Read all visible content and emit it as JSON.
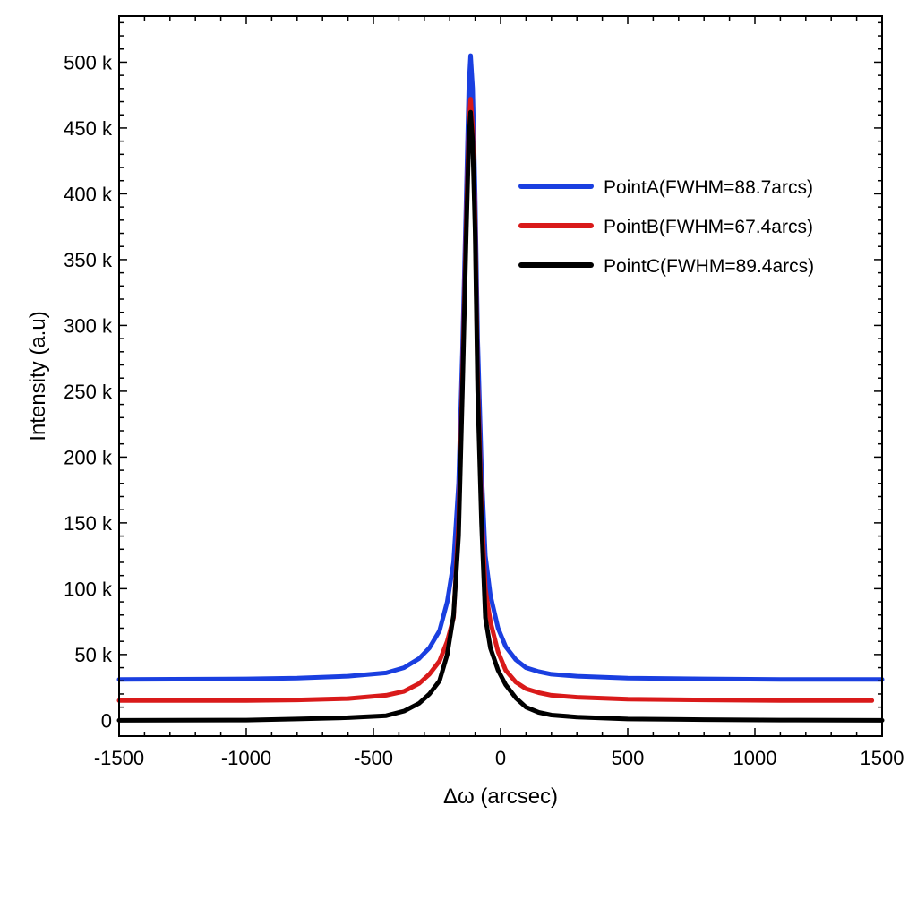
{
  "chart_data": {
    "type": "line",
    "title": "",
    "xlabel": "Δω (arcsec)",
    "ylabel": "Intensity (a.u)",
    "xlim": [
      -1500,
      1500
    ],
    "ylim": [
      -12000,
      535000
    ],
    "x_ticks": [
      -1500,
      -1000,
      -500,
      0,
      500,
      1000,
      1500
    ],
    "x_tick_labels": [
      "-1500",
      "-1000",
      "-500",
      "0",
      "500",
      "1000",
      "1500"
    ],
    "y_ticks": [
      0,
      50000,
      100000,
      150000,
      200000,
      250000,
      300000,
      350000,
      400000,
      450000,
      500000
    ],
    "y_tick_labels": [
      "0",
      "50 k",
      "100 k",
      "150 k",
      "200 k",
      "250 k",
      "300 k",
      "350 k",
      "400 k",
      "450 k",
      "500 k"
    ],
    "grid": false,
    "legend_position": "top-right",
    "series": [
      {
        "name": "PointA(FWHM=88.7arcs)",
        "color": "#1a3fe0",
        "x": [
          -1500,
          -1000,
          -800,
          -600,
          -450,
          -380,
          -320,
          -280,
          -240,
          -210,
          -185,
          -165,
          -150,
          -135,
          -125,
          -118,
          -110,
          -100,
          -90,
          -75,
          -60,
          -40,
          -10,
          20,
          60,
          100,
          150,
          200,
          300,
          500,
          800,
          1100,
          1500
        ],
        "y": [
          31000,
          31500,
          32000,
          33500,
          36000,
          40000,
          47000,
          55000,
          68000,
          90000,
          120000,
          180000,
          280000,
          400000,
          480000,
          505000,
          480000,
          400000,
          290000,
          190000,
          125000,
          95000,
          70000,
          56000,
          46000,
          40000,
          37000,
          35000,
          33500,
          32000,
          31500,
          31000,
          31000
        ]
      },
      {
        "name": "PointB(FWHM=67.4arcs)",
        "color": "#d91a1a",
        "x": [
          -1500,
          -1000,
          -800,
          -600,
          -450,
          -380,
          -320,
          -280,
          -240,
          -210,
          -185,
          -165,
          -150,
          -135,
          -125,
          -118,
          -110,
          -100,
          -90,
          -75,
          -60,
          -40,
          -10,
          20,
          60,
          100,
          150,
          200,
          300,
          500,
          800,
          1100,
          1460
        ],
        "y": [
          15000,
          15000,
          15500,
          16500,
          19000,
          22000,
          28000,
          35000,
          45000,
          60000,
          78000,
          150000,
          260000,
          380000,
          450000,
          472000,
          450000,
          380000,
          260000,
          160000,
          100000,
          75000,
          52000,
          38000,
          29000,
          24000,
          21000,
          19000,
          17500,
          16000,
          15500,
          15000,
          15000
        ]
      },
      {
        "name": "PointC(FWHM=89.4arcs)",
        "color": "#000000",
        "x": [
          -1500,
          -1000,
          -800,
          -600,
          -450,
          -380,
          -320,
          -280,
          -240,
          -210,
          -185,
          -165,
          -150,
          -135,
          -125,
          -118,
          -110,
          -100,
          -90,
          -75,
          -60,
          -40,
          -10,
          20,
          60,
          100,
          150,
          200,
          300,
          500,
          800,
          1100,
          1500
        ],
        "y": [
          0,
          200,
          1000,
          2000,
          3500,
          7000,
          13000,
          20000,
          30000,
          50000,
          80000,
          140000,
          250000,
          370000,
          440000,
          462000,
          440000,
          370000,
          250000,
          150000,
          78000,
          55000,
          38000,
          27000,
          17000,
          10000,
          6000,
          4000,
          2500,
          1000,
          500,
          200,
          0
        ]
      }
    ]
  }
}
